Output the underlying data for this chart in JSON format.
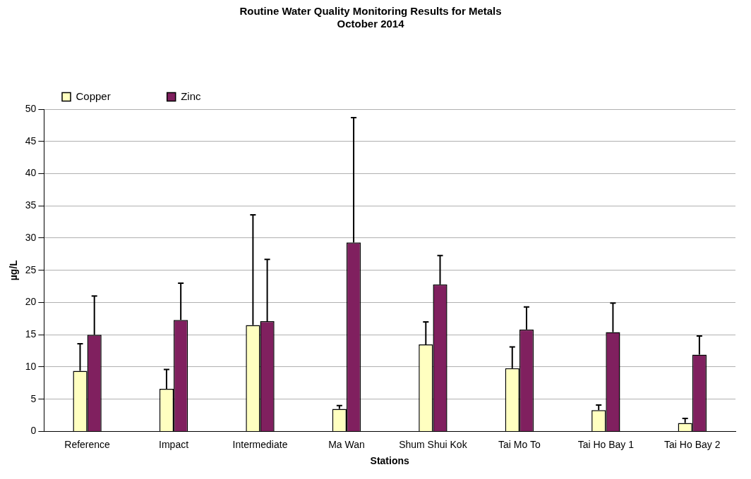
{
  "chart_data": {
    "type": "bar",
    "title": [
      "Routine Water Quality Monitoring Results for Metals",
      "October 2014"
    ],
    "xlabel": "Stations",
    "ylabel": "µg/L",
    "categories": [
      "Reference",
      "Impact",
      "Intermediate",
      "Ma Wan",
      "Shum Shui Kok",
      "Tai Mo To",
      "Tai Ho Bay 1",
      "Tai Ho Bay 2"
    ],
    "series": [
      {
        "name": "Copper",
        "color": "#ffffc0",
        "values": [
          9.4,
          6.6,
          16.5,
          3.5,
          13.5,
          9.8,
          3.3,
          1.3
        ],
        "errors": [
          [
            9.4,
            13.6
          ],
          [
            6.6,
            9.6
          ],
          [
            16.5,
            33.6
          ],
          [
            3.5,
            4.0
          ],
          [
            13.5,
            17.0
          ],
          [
            9.8,
            13.1
          ],
          [
            3.3,
            4.1
          ],
          [
            1.3,
            2.0
          ]
        ]
      },
      {
        "name": "Zinc",
        "color": "#80205f",
        "values": [
          15.0,
          17.3,
          17.1,
          29.3,
          22.8,
          15.8,
          15.4,
          11.9
        ],
        "errors": [
          [
            15.0,
            21.0
          ],
          [
            17.3,
            23.0
          ],
          [
            17.1,
            26.7
          ],
          [
            29.3,
            48.7
          ],
          [
            22.8,
            27.3
          ],
          [
            15.8,
            19.3
          ],
          [
            15.4,
            19.9
          ],
          [
            11.9,
            14.8
          ]
        ]
      }
    ],
    "ylim": [
      0,
      50
    ],
    "yticks": [
      0,
      5,
      10,
      15,
      20,
      25,
      30,
      35,
      40,
      45,
      50
    ],
    "grid": "y",
    "legend": "top left"
  }
}
